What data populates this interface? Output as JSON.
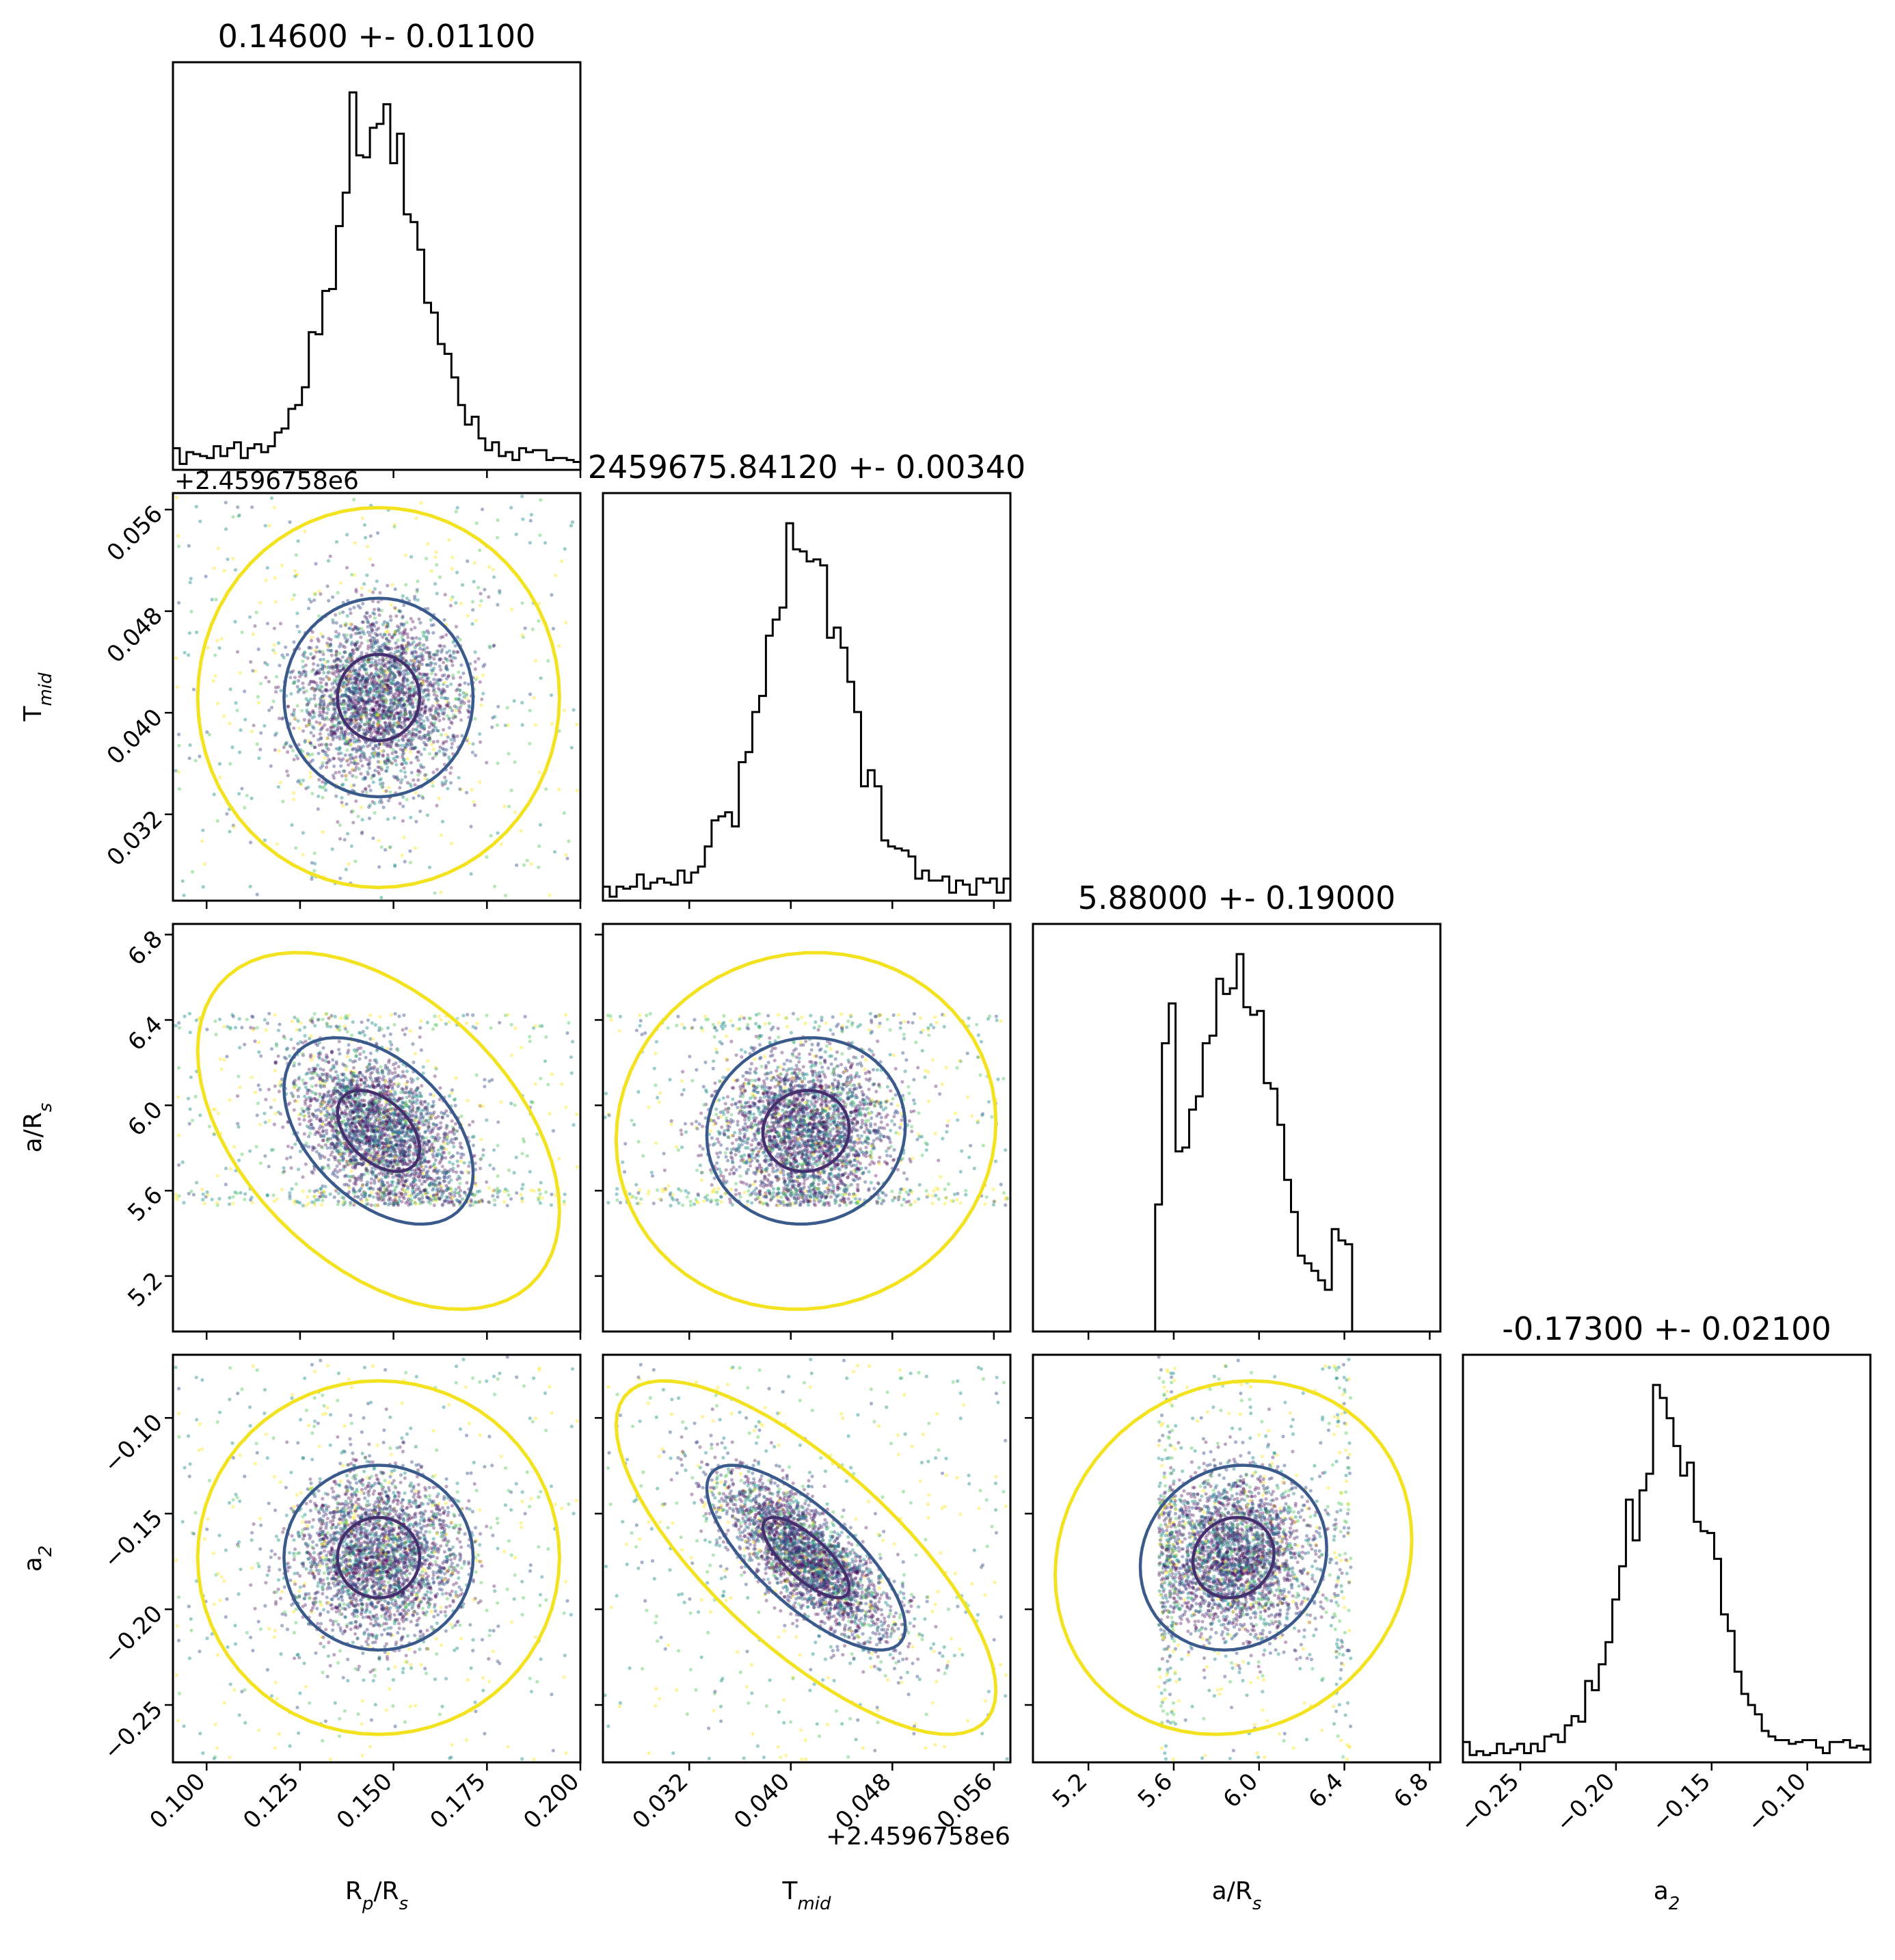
{
  "chart_data": {
    "type": "scatter",
    "kind": "corner plot",
    "colormap": [
      "#440154",
      "#3b528b",
      "#21918c",
      "#5ec962",
      "#fde725"
    ],
    "contour_colors": {
      "inner": "#45306e",
      "outer": "#3a5a8c",
      "outermost": "#f3e21f"
    },
    "parameters": [
      {
        "key": "rp",
        "label_main": "R",
        "label_sub1": "p",
        "label_mid": "/R",
        "label_sub2": "s",
        "title": "0.14600 +- 0.01100",
        "median": 0.146,
        "sigma": 0.011,
        "range": [
          0.091,
          0.2
        ],
        "ticks": [
          "0.100",
          "0.125",
          "0.150",
          "0.175",
          "0.200"
        ]
      },
      {
        "key": "tmid",
        "label_main": "T",
        "label_sub1": "mid",
        "label_mid": "",
        "label_sub2": "",
        "title": "2459675.84120 +- 0.00340",
        "median": 0.0412,
        "sigma": 0.0034,
        "offset": "+2.4596758e6",
        "range": [
          0.0252,
          0.0573
        ],
        "ticks": [
          "0.032",
          "0.040",
          "0.048",
          "0.056"
        ]
      },
      {
        "key": "ars",
        "label_main": "a/R",
        "label_sub1": "",
        "label_mid": "",
        "label_sub2": "s",
        "title": "5.88000 +- 0.19000",
        "median": 5.88,
        "sigma": 0.19,
        "prior_bounds": [
          5.53,
          6.43
        ],
        "range": [
          4.94,
          6.85
        ],
        "ticks": [
          "5.2",
          "5.6",
          "6.0",
          "6.4",
          "6.8"
        ]
      },
      {
        "key": "a2",
        "label_main": "a",
        "label_sub1": "",
        "label_mid": "",
        "label_sub2": "2",
        "title": "-0.17300 +- 0.02100",
        "median": -0.173,
        "sigma": 0.021,
        "range": [
          -0.28,
          -0.067
        ],
        "ticks": [
          "−0.25",
          "−0.20",
          "−0.15",
          "−0.10"
        ]
      }
    ]
  }
}
